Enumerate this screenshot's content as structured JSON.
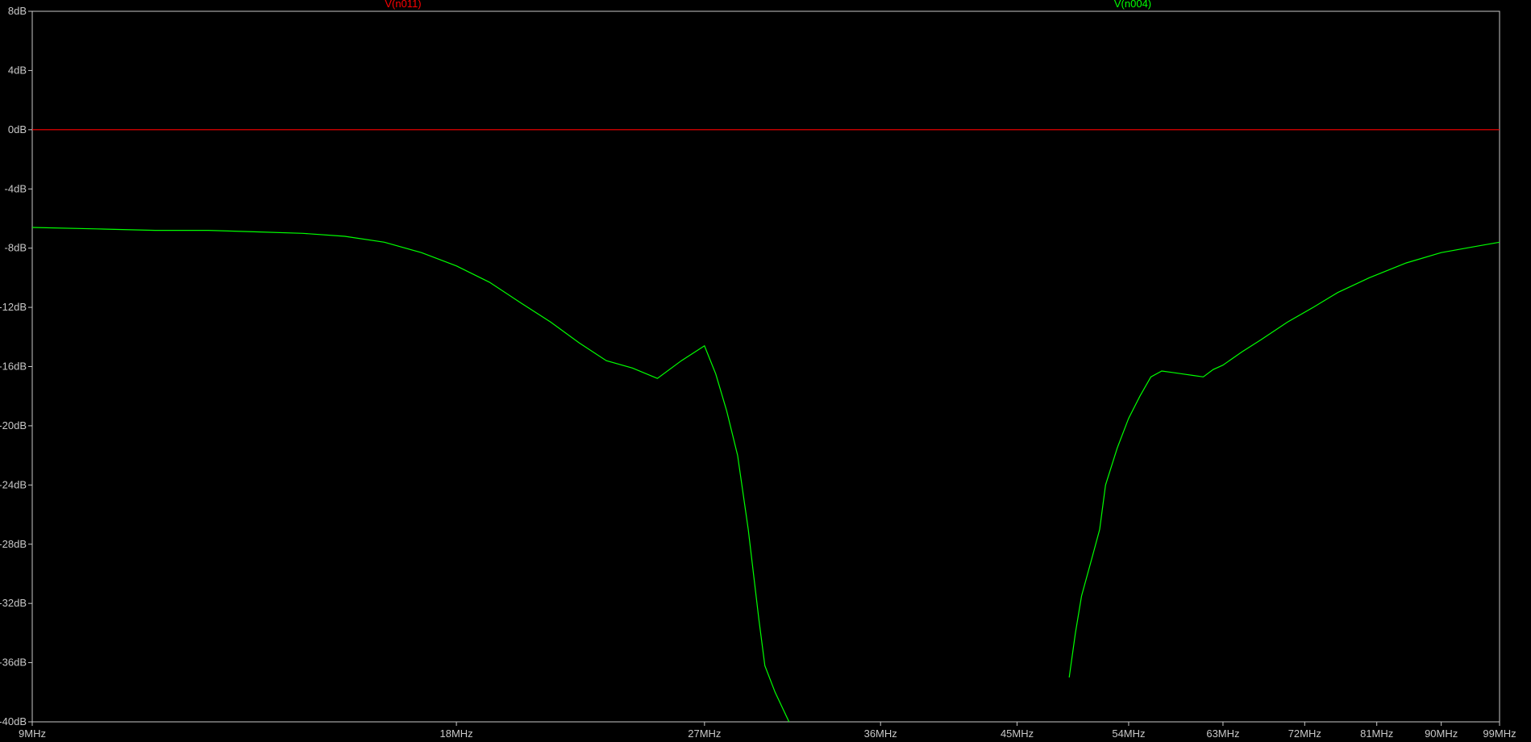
{
  "chart_data": {
    "type": "line",
    "x_scale": "log",
    "xlim": [
      9,
      99
    ],
    "ylim": [
      -40,
      8
    ],
    "x_unit": "MHz",
    "y_unit": "dB",
    "grid": false,
    "background": "#000000",
    "axis_color": "#c8c8c8",
    "x_ticks": [
      9,
      18,
      27,
      36,
      45,
      54,
      63,
      72,
      81,
      90,
      99
    ],
    "x_tick_labels": [
      "9MHz",
      "18MHz",
      "27MHz",
      "36MHz",
      "45MHz",
      "54MHz",
      "63MHz",
      "72MHz",
      "81MHz",
      "90MHz",
      "99MHz"
    ],
    "y_ticks": [
      8,
      4,
      0,
      -4,
      -8,
      -12,
      -16,
      -20,
      -24,
      -28,
      -32,
      -36,
      -40
    ],
    "y_tick_labels": [
      "8dB",
      "4dB",
      "0dB",
      "-4dB",
      "-8dB",
      "-12dB",
      "-16dB",
      "-20dB",
      "-24dB",
      "-28dB",
      "-32dB",
      "-36dB",
      "-40dB"
    ],
    "series": [
      {
        "name": "V(n011)",
        "color": "#ff0000",
        "x": [
          9,
          99
        ],
        "y": [
          0,
          0
        ]
      },
      {
        "name": "V(n004)",
        "color": "#00ff00",
        "x": [
          9,
          10,
          11,
          12,
          13,
          14,
          15,
          16,
          17,
          18,
          19,
          20,
          21,
          22,
          23,
          24,
          25,
          26,
          27,
          27.5,
          28,
          28.5,
          29,
          29.5,
          29.8,
          30.3,
          31,
          48.5,
          49,
          49.5,
          50,
          51,
          51.5,
          52,
          53,
          54,
          55,
          56,
          57,
          58,
          59,
          60,
          61,
          62,
          63,
          65,
          67,
          70,
          73,
          76,
          80,
          85,
          90,
          95,
          99
        ],
        "y": [
          -6.6,
          -6.7,
          -6.8,
          -6.8,
          -6.9,
          -7.0,
          -7.2,
          -7.6,
          -8.3,
          -9.2,
          -10.3,
          -11.7,
          -13.0,
          -14.4,
          -15.6,
          -16.1,
          -16.8,
          -15.6,
          -14.6,
          -16.5,
          -19.0,
          -22.0,
          -27.0,
          -33.0,
          -36.2,
          -38.0,
          -40.0,
          -40.0,
          -37.0,
          -34.0,
          -31.5,
          -28.5,
          -27.0,
          -24.0,
          -21.5,
          -19.5,
          -18.0,
          -16.7,
          -16.3,
          -16.4,
          -16.5,
          -16.6,
          -16.7,
          -16.2,
          -15.9,
          -15.0,
          -14.2,
          -13.0,
          -12.0,
          -11.0,
          -10.0,
          -9.0,
          -8.3,
          -7.9,
          -7.6
        ]
      }
    ]
  }
}
